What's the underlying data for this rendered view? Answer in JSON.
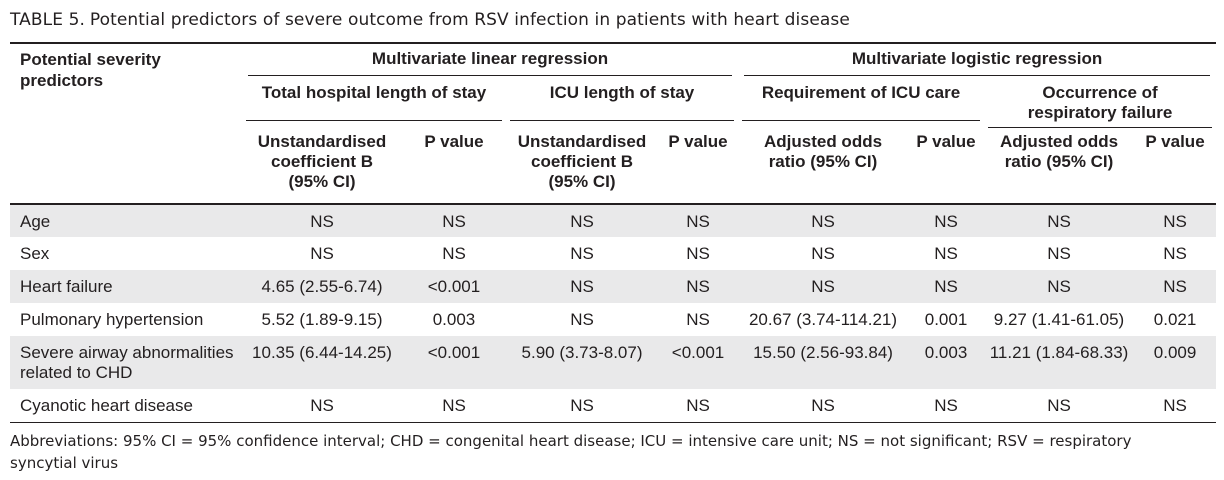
{
  "caption": {
    "label": "TABLE 5.",
    "text": "Potential predictors of severe outcome from RSV infection in patients with heart disease"
  },
  "table": {
    "stub_header": "Potential severity predictors",
    "groups": [
      {
        "label": "Multivariate linear regression"
      },
      {
        "label": "Multivariate logistic regression"
      }
    ],
    "subgroups": [
      "Total hospital length of stay",
      "ICU length of stay",
      "Requirement of ICU care",
      "Occurrence of respiratory failure"
    ],
    "columns": [
      "Unstandardised coefficient B (95% CI)",
      "P value",
      "Unstandardised coefficient B (95% CI)",
      "P value",
      "Adjusted odds ratio (95% CI)",
      "P value",
      "Adjusted odds ratio (95% CI)",
      "P value"
    ],
    "rows": [
      {
        "label": "Age",
        "values": [
          "NS",
          "NS",
          "NS",
          "NS",
          "NS",
          "NS",
          "NS",
          "NS"
        ]
      },
      {
        "label": "Sex",
        "values": [
          "NS",
          "NS",
          "NS",
          "NS",
          "NS",
          "NS",
          "NS",
          "NS"
        ]
      },
      {
        "label": "Heart failure",
        "values": [
          "4.65 (2.55-6.74)",
          "<0.001",
          "NS",
          "NS",
          "NS",
          "NS",
          "NS",
          "NS"
        ]
      },
      {
        "label": "Pulmonary hypertension",
        "values": [
          "5.52 (1.89-9.15)",
          "0.003",
          "NS",
          "NS",
          "20.67 (3.74-114.21)",
          "0.001",
          "9.27 (1.41-61.05)",
          "0.021"
        ]
      },
      {
        "label": "Severe airway abnormalities related to CHD",
        "values": [
          "10.35 (6.44-14.25)",
          "<0.001",
          "5.90 (3.73-8.07)",
          "<0.001",
          "15.50 (2.56-93.84)",
          "0.003",
          "11.21 (1.84-68.33)",
          "0.009"
        ]
      },
      {
        "label": "Cyanotic heart disease",
        "values": [
          "NS",
          "NS",
          "NS",
          "NS",
          "NS",
          "NS",
          "NS",
          "NS"
        ]
      }
    ]
  },
  "footnote": "Abbreviations: 95% CI = 95% confidence interval; CHD = congenital heart disease; ICU = intensive care unit; NS = not significant; RSV = respiratory syncytial virus"
}
